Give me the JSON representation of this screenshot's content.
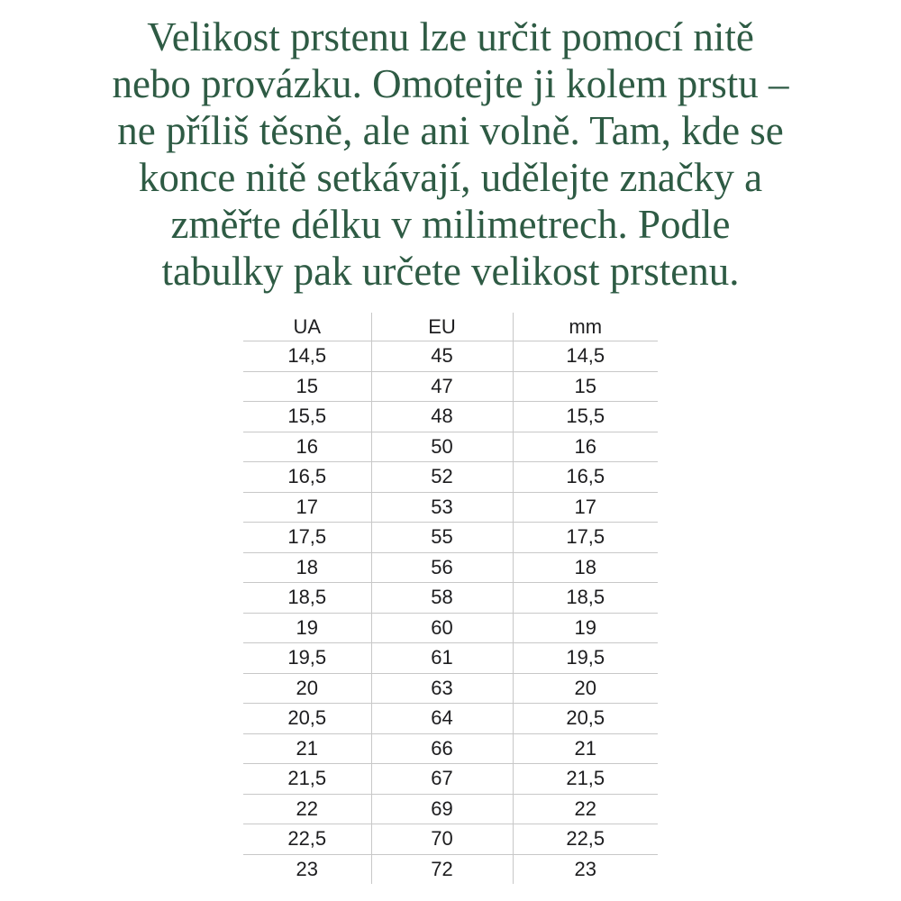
{
  "intro": {
    "color": "#2e5b44",
    "lines": [
      "Velikost prstenu lze určit pomocí nitě",
      "nebo provázku. Omotejte ji kolem prstu –",
      "ne příliš těsně, ale ani volně. Tam, kde se",
      "konce nitě setkávají, udělejte značky a",
      "změřte délku v milimetrech. Podle",
      "tabulky pak určete velikost prstenu."
    ]
  },
  "table": {
    "grid_color": "#c8c8c8",
    "text_color": "#1d1d1f",
    "columns": [
      "UA",
      "EU",
      "mm"
    ],
    "rows": [
      [
        "14,5",
        "45",
        "14,5"
      ],
      [
        "15",
        "47",
        "15"
      ],
      [
        "15,5",
        "48",
        "15,5"
      ],
      [
        "16",
        "50",
        "16"
      ],
      [
        "16,5",
        "52",
        "16,5"
      ],
      [
        "17",
        "53",
        "17"
      ],
      [
        "17,5",
        "55",
        "17,5"
      ],
      [
        "18",
        "56",
        "18"
      ],
      [
        "18,5",
        "58",
        "18,5"
      ],
      [
        "19",
        "60",
        "19"
      ],
      [
        "19,5",
        "61",
        "19,5"
      ],
      [
        "20",
        "63",
        "20"
      ],
      [
        "20,5",
        "64",
        "20,5"
      ],
      [
        "21",
        "66",
        "21"
      ],
      [
        "21,5",
        "67",
        "21,5"
      ],
      [
        "22",
        "69",
        "22"
      ],
      [
        "22,5",
        "70",
        "22,5"
      ],
      [
        "23",
        "72",
        "23"
      ]
    ]
  }
}
